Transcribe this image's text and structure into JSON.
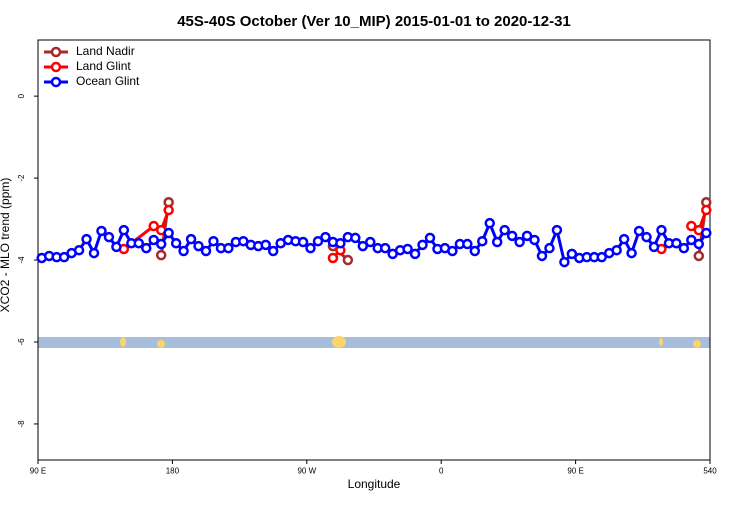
{
  "chart_data": {
    "type": "line",
    "title": "45S-40S October (Ver 10_MIP)   2015-01-01 to 2020-12-31",
    "xlabel": "Longitude",
    "ylabel": "XCO2 - MLO trend (ppm)",
    "xlim": [
      90,
      540
    ],
    "ylim": [
      -8.88,
      1.37
    ],
    "xticks": [
      {
        "value": 90,
        "label": "90 E"
      },
      180,
      {
        "value": 270,
        "label": "90 W"
      },
      {
        "value": 360,
        "label": "0"
      },
      {
        "value": 450,
        "label": "90 E"
      },
      540
    ],
    "yticks": [
      0,
      -2,
      -4,
      -6,
      -8
    ],
    "legend": "top-left",
    "series": [
      {
        "name": "Land Nadir",
        "color": "#a52a2a",
        "x": [
          172.5,
          177.5,
          null,
          287.5,
          297.5,
          null,
          532.5,
          537.5
        ],
        "values": [
          -3.88,
          -2.59,
          null,
          -3.66,
          -4.0,
          null,
          -3.9,
          -2.59
        ]
      },
      {
        "name": "Land Glint",
        "color": "#ff0000",
        "x": [
          147.5,
          167.5,
          172.5,
          177.5,
          null,
          287.5,
          292.5,
          null,
          507.5,
          null,
          527.5,
          532.5,
          537.5
        ],
        "values": [
          -3.73,
          -3.17,
          -3.27,
          -2.78,
          null,
          -3.95,
          -3.76,
          null,
          -3.73,
          null,
          -3.17,
          -3.27,
          -2.78
        ]
      },
      {
        "name": "Ocean Glint",
        "color": "#0000ff",
        "x": [
          92.5,
          97.5,
          102.5,
          107.5,
          112.5,
          117.5,
          122.5,
          127.5,
          132.5,
          137.5,
          142.5,
          147.5,
          152.5,
          157.5,
          162.5,
          167.5,
          172.5,
          177.5,
          182.5,
          187.5,
          192.5,
          197.5,
          202.5,
          207.5,
          212.5,
          217.5,
          222.5,
          227.5,
          232.5,
          237.5,
          242.5,
          247.5,
          252.5,
          257.5,
          262.5,
          267.5,
          272.5,
          277.5,
          282.5,
          287.5,
          292.5,
          297.5,
          302.5,
          307.5,
          312.5,
          317.5,
          322.5,
          327.5,
          332.5,
          337.5,
          342.5,
          347.5,
          352.5,
          357.5,
          362.5,
          367.5,
          372.5,
          377.5,
          382.5,
          387.5,
          392.5,
          397.5,
          402.5,
          407.5,
          412.5,
          417.5,
          422.5,
          427.5,
          432.5,
          437.5,
          442.5,
          447.5,
          452.5,
          457.5,
          462.5,
          467.5,
          472.5,
          477.5,
          482.5,
          487.5,
          492.5,
          497.5,
          502.5,
          507.5,
          512.5,
          517.5,
          522.5,
          527.5,
          532.5,
          537.5
        ],
        "values": [
          -3.95,
          -3.9,
          -3.93,
          -3.93,
          -3.83,
          -3.76,
          -3.49,
          -3.83,
          -3.29,
          -3.44,
          -3.68,
          -3.27,
          -3.59,
          -3.59,
          -3.71,
          -3.51,
          -3.61,
          -3.34,
          -3.59,
          -3.78,
          -3.49,
          -3.66,
          -3.78,
          -3.54,
          -3.71,
          -3.71,
          -3.56,
          -3.54,
          -3.63,
          -3.66,
          -3.63,
          -3.78,
          -3.59,
          -3.51,
          -3.54,
          -3.56,
          -3.71,
          -3.54,
          -3.44,
          -3.56,
          -3.59,
          -3.44,
          -3.46,
          -3.66,
          -3.56,
          -3.71,
          -3.71,
          -3.85,
          -3.76,
          -3.73,
          -3.85,
          -3.63,
          -3.46,
          -3.73,
          -3.71,
          -3.78,
          -3.61,
          -3.61,
          -3.78,
          -3.54,
          -3.1,
          -3.56,
          -3.27,
          -3.41,
          -3.56,
          -3.41,
          -3.51,
          -3.9,
          -3.71,
          -3.27,
          -4.05,
          -3.85,
          -3.95,
          -3.93,
          -3.93,
          -3.93,
          -3.83,
          -3.76,
          -3.49,
          -3.83,
          -3.29,
          -3.44,
          -3.68,
          -3.27,
          -3.59,
          -3.59,
          -3.71,
          -3.51,
          -3.61,
          -3.34
        ]
      }
    ]
  }
}
